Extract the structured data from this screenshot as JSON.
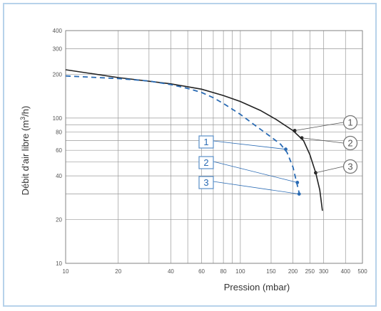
{
  "chart_data": {
    "type": "line",
    "xlabel": "Pression (mbar)",
    "ylabel_main": "Débit d’air libre (m",
    "ylabel_sup": "3",
    "ylabel_end": "/h)",
    "x_scale": "log",
    "y_scale": "log",
    "xlim": [
      10,
      500
    ],
    "ylim": [
      10,
      400
    ],
    "x_ticks": [
      {
        "value": 10,
        "label": "10"
      },
      {
        "value": 20,
        "label": "20"
      },
      {
        "value": 40,
        "label": "40"
      },
      {
        "value": 60,
        "label": "60"
      },
      {
        "value": 80,
        "label": "80"
      },
      {
        "value": 100,
        "label": "100"
      },
      {
        "value": 150,
        "label": "150"
      },
      {
        "value": 200,
        "label": "200"
      },
      {
        "value": 250,
        "label": "250"
      },
      {
        "value": 300,
        "label": "300"
      },
      {
        "value": 400,
        "label": "400"
      },
      {
        "value": 500,
        "label": "500"
      }
    ],
    "x_grid": [
      10,
      20,
      30,
      40,
      50,
      60,
      70,
      80,
      90,
      100,
      150,
      200,
      250,
      300,
      400,
      500
    ],
    "y_ticks": [
      {
        "value": 10,
        "label": "10"
      },
      {
        "value": 20,
        "label": "20"
      },
      {
        "value": 40,
        "label": "40"
      },
      {
        "value": 60,
        "label": "60"
      },
      {
        "value": 80,
        "label": "80"
      },
      {
        "value": 100,
        "label": "100"
      },
      {
        "value": 200,
        "label": "200"
      },
      {
        "value": 300,
        "label": "300"
      },
      {
        "value": 400,
        "label": "400"
      }
    ],
    "y_grid": [
      10,
      20,
      30,
      40,
      50,
      60,
      70,
      80,
      90,
      100,
      200,
      300,
      400
    ],
    "grid": true,
    "series": [
      {
        "style": "solid",
        "color": "#222222",
        "points": [
          [
            10,
            215
          ],
          [
            20,
            190
          ],
          [
            40,
            172
          ],
          [
            60,
            158
          ],
          [
            80,
            143
          ],
          [
            100,
            130
          ],
          [
            130,
            113
          ],
          [
            160,
            98
          ],
          [
            200,
            82
          ],
          [
            230,
            70
          ],
          [
            250,
            56
          ],
          [
            270,
            42
          ],
          [
            285,
            32
          ],
          [
            295,
            23
          ]
        ]
      },
      {
        "style": "dashed",
        "color": "#2a6bb4",
        "points": [
          [
            10,
            195
          ],
          [
            20,
            187
          ],
          [
            30,
            180
          ],
          [
            40,
            170
          ],
          [
            50,
            160
          ],
          [
            60,
            150
          ],
          [
            70,
            138
          ],
          [
            80,
            126
          ],
          [
            100,
            106
          ],
          [
            120,
            90
          ],
          [
            150,
            74
          ],
          [
            170,
            66
          ],
          [
            185,
            58
          ],
          [
            200,
            46
          ],
          [
            210,
            36
          ],
          [
            218,
            30
          ]
        ]
      }
    ],
    "markers_solid": [
      {
        "x": 205,
        "y": 82
      },
      {
        "x": 225,
        "y": 73
      },
      {
        "x": 270,
        "y": 42
      }
    ],
    "markers_blue": [
      {
        "x": 182,
        "y": 61
      },
      {
        "x": 212,
        "y": 36
      },
      {
        "x": 217,
        "y": 30
      }
    ],
    "callouts_circle": [
      "1",
      "2",
      "3"
    ],
    "callouts_square": [
      "1",
      "2",
      "3"
    ],
    "colors": {
      "accent": "#2a6bb4",
      "frame": "#b7d2ea",
      "grid": "#999999",
      "curve": "#222222"
    }
  }
}
